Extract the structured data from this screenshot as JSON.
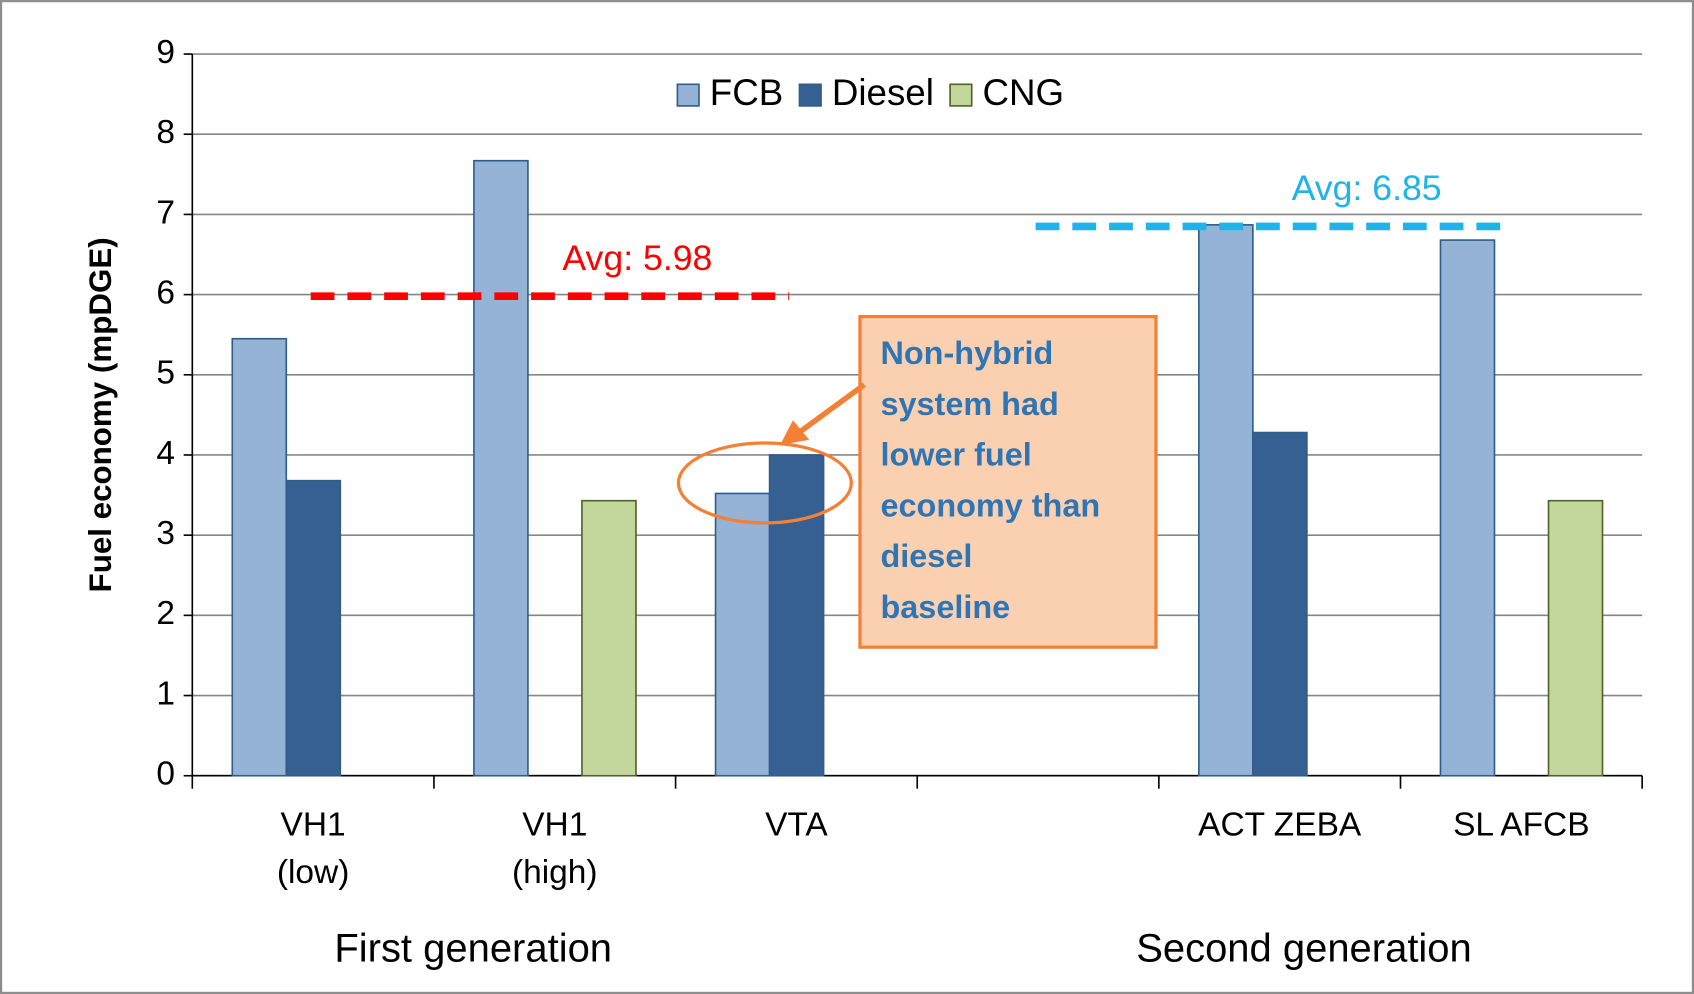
{
  "chart_data": {
    "type": "bar",
    "y_label": "Fuel economy (mpDGE)",
    "categories": [
      "VH1\n(low)",
      "VH1\n(high)",
      "VTA",
      null,
      "ACT ZEBA",
      "SL AFCB"
    ],
    "series": [
      {
        "name": "FCB",
        "color": "#95b3d7",
        "values": [
          5.45,
          7.67,
          3.52,
          null,
          6.87,
          6.68
        ]
      },
      {
        "name": "Diesel",
        "color": "#376092",
        "values": [
          3.68,
          null,
          4.0,
          null,
          4.28,
          null
        ]
      },
      {
        "name": "CNG",
        "color": "#c3d69b",
        "values": [
          null,
          3.43,
          null,
          null,
          null,
          3.43
        ]
      }
    ],
    "groups": [
      "First generation",
      "Second generation"
    ],
    "avg_lines": [
      {
        "value": 5.98,
        "label": "Avg: 5.98",
        "color": "#ff0000"
      },
      {
        "value": 6.85,
        "label": "Avg: 6.85",
        "color": "#1fb3e8"
      }
    ],
    "callout": [
      "Non-hybrid",
      "system had",
      "lower fuel",
      "economy than",
      "diesel",
      "baseline"
    ],
    "ylim": [
      0,
      9
    ],
    "yticks": [
      0,
      1,
      2,
      3,
      4,
      5,
      6,
      7,
      8,
      9
    ],
    "grid": true,
    "legend": "upper center"
  }
}
